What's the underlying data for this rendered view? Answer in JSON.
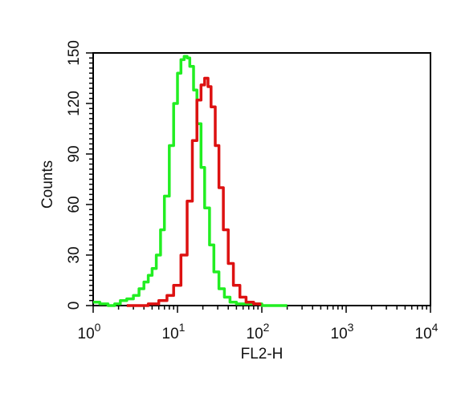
{
  "chart_data": {
    "type": "line",
    "title": "",
    "xlabel": "FL2-H",
    "ylabel": "Counts",
    "x_scale": "log",
    "xlim": [
      1,
      10000
    ],
    "ylim": [
      0,
      150
    ],
    "x_ticks": [
      {
        "base": "10",
        "exp": "0",
        "value": 1
      },
      {
        "base": "10",
        "exp": "1",
        "value": 10
      },
      {
        "base": "10",
        "exp": "2",
        "value": 100
      },
      {
        "base": "10",
        "exp": "3",
        "value": 1000
      },
      {
        "base": "10",
        "exp": "4",
        "value": 10000
      }
    ],
    "y_ticks": [
      "0",
      "30",
      "60",
      "90",
      "120",
      "150"
    ],
    "grid": false,
    "series": [
      {
        "color": "#22ee22",
        "points": [
          [
            1.0,
            2
          ],
          [
            1.2,
            1
          ],
          [
            1.5,
            0
          ],
          [
            1.8,
            1
          ],
          [
            2.1,
            3
          ],
          [
            2.5,
            4
          ],
          [
            3.0,
            6
          ],
          [
            3.5,
            10
          ],
          [
            4.0,
            14
          ],
          [
            4.5,
            18
          ],
          [
            5.0,
            22
          ],
          [
            5.6,
            30
          ],
          [
            6.3,
            45
          ],
          [
            7.0,
            65
          ],
          [
            8.0,
            95
          ],
          [
            9.0,
            120
          ],
          [
            10.0,
            138
          ],
          [
            11.0,
            146
          ],
          [
            12.0,
            148
          ],
          [
            13.0,
            147
          ],
          [
            14.0,
            142
          ],
          [
            15.5,
            128
          ],
          [
            17.0,
            108
          ],
          [
            19.0,
            82
          ],
          [
            21.0,
            58
          ],
          [
            24.0,
            36
          ],
          [
            27.0,
            20
          ],
          [
            31.0,
            10
          ],
          [
            36.0,
            5
          ],
          [
            42.0,
            2
          ],
          [
            50.0,
            1
          ],
          [
            70.0,
            1
          ],
          [
            100.0,
            0
          ],
          [
            150.0,
            0
          ],
          [
            200.0,
            0
          ]
        ]
      },
      {
        "color": "#dd1111",
        "points": [
          [
            2.5,
            0
          ],
          [
            3.5,
            0
          ],
          [
            4.5,
            1
          ],
          [
            6.0,
            3
          ],
          [
            7.5,
            6
          ],
          [
            9.0,
            12
          ],
          [
            11.0,
            30
          ],
          [
            13.0,
            62
          ],
          [
            15.0,
            98
          ],
          [
            17.0,
            122
          ],
          [
            19.0,
            131
          ],
          [
            21.0,
            135
          ],
          [
            23.0,
            130
          ],
          [
            25.0,
            118
          ],
          [
            28.0,
            95
          ],
          [
            31.0,
            70
          ],
          [
            35.0,
            45
          ],
          [
            40.0,
            25
          ],
          [
            46.0,
            12
          ],
          [
            55.0,
            5
          ],
          [
            65.0,
            2
          ],
          [
            80.0,
            1
          ],
          [
            95.0,
            0
          ]
        ]
      }
    ]
  }
}
